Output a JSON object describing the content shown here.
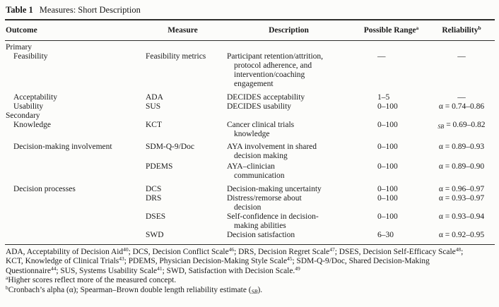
{
  "caption": {
    "label": "Table 1",
    "text": "Measures: Short Description"
  },
  "columns": [
    {
      "key": "outcome",
      "align": "left",
      "label": [
        {
          "t": "Outcome"
        }
      ]
    },
    {
      "key": "measure",
      "align": "center",
      "label": [
        {
          "t": "Measure"
        }
      ]
    },
    {
      "key": "description",
      "align": "center",
      "label": [
        {
          "t": "Description"
        }
      ]
    },
    {
      "key": "range",
      "align": "center",
      "label": [
        {
          "t": "Possible Range"
        },
        {
          "t": "a",
          "sup": true
        }
      ]
    },
    {
      "key": "reliability",
      "align": "center",
      "label": [
        {
          "t": "Reliability"
        },
        {
          "t": "b",
          "sup": true
        }
      ]
    }
  ],
  "rows": [
    {
      "section": "Primary"
    },
    {
      "outcome": "Feasibility",
      "measure": "Feasibility metrics",
      "description": [
        "Participant retention/attrition,",
        "protocol adherence, and",
        "intervention/coaching",
        "engagement"
      ],
      "range": "—",
      "reliability": [
        {
          "t": "—"
        }
      ]
    },
    {
      "outcome": "Acceptability",
      "measure": "ADA",
      "description": [
        "DECIDES acceptability"
      ],
      "range": "1–5",
      "reliability": [
        {
          "t": "—"
        }
      ]
    },
    {
      "outcome": "Usability",
      "measure": "SUS",
      "description": [
        "DECIDES usability"
      ],
      "range": "0–100",
      "reliability": [
        {
          "t": "α = 0.74–0.86"
        }
      ]
    },
    {
      "section": "Secondary"
    },
    {
      "outcome": "Knowledge",
      "measure": "KCT",
      "description": [
        "Cancer clinical trials",
        "knowledge"
      ],
      "range": "0–100",
      "reliability": [
        {
          "t": "SB",
          "subi": true
        },
        {
          "t": " = 0.69–0.82"
        }
      ]
    },
    {
      "outcome": "Decision-making involvement",
      "measure": "SDM-Q-9/Doc",
      "description": [
        "AYA involvement in shared",
        "decision making"
      ],
      "range": "0–100",
      "reliability": [
        {
          "t": "α = 0.89–0.93"
        }
      ]
    },
    {
      "outcome": "",
      "measure": "PDEMS",
      "description": [
        "AYA–clinician",
        "communication"
      ],
      "range": "0–100",
      "reliability": [
        {
          "t": "α = 0.89–0.90"
        }
      ]
    },
    {
      "outcome": "Decision processes",
      "measure": "DCS",
      "description": [
        "Decision-making uncertainty"
      ],
      "range": "0–100",
      "reliability": [
        {
          "t": "α = 0.96–0.97"
        }
      ]
    },
    {
      "outcome": "",
      "measure": "DRS",
      "description": [
        "Distress/remorse about",
        "decision"
      ],
      "range": "0–100",
      "reliability": [
        {
          "t": "α = 0.93–0.97"
        }
      ]
    },
    {
      "outcome": "",
      "measure": "DSES",
      "description": [
        "Self-confidence in decision-",
        "making abilities"
      ],
      "range": "0–100",
      "reliability": [
        {
          "t": "α = 0.93–0.94"
        }
      ]
    },
    {
      "outcome": "",
      "measure": "SWD",
      "description": [
        "Decision satisfaction"
      ],
      "range": "6–30",
      "reliability": [
        {
          "t": "α = 0.92–0.95"
        }
      ]
    }
  ],
  "footnotes": [
    {
      "segments": [
        {
          "t": "ADA, Acceptability of Decision Aid"
        },
        {
          "t": "40",
          "sup": true
        },
        {
          "t": "; DCS, Decision Conflict Scale"
        },
        {
          "t": "46",
          "sup": true
        },
        {
          "t": "; DRS, Decision Regret Scale"
        },
        {
          "t": "47",
          "sup": true
        },
        {
          "t": "; DSES, Decision Self-Efficacy Scale"
        },
        {
          "t": "48",
          "sup": true
        },
        {
          "t": ";"
        }
      ]
    },
    {
      "segments": [
        {
          "t": "KCT, Knowledge of Clinical Trials"
        },
        {
          "t": "43",
          "sup": true
        },
        {
          "t": "; PDEMS, Physician Decision-Making Style Scale"
        },
        {
          "t": "45",
          "sup": true
        },
        {
          "t": "; SDM-Q-9/Doc, Shared Decision-Making"
        }
      ]
    },
    {
      "segments": [
        {
          "t": "Questionnaire"
        },
        {
          "t": "44",
          "sup": true
        },
        {
          "t": "; SUS, Systems Usability Scale"
        },
        {
          "t": "41",
          "sup": true
        },
        {
          "t": "; SWD, Satisfaction with Decision Scale."
        },
        {
          "t": "49",
          "sup": true
        }
      ]
    },
    {
      "segments": [
        {
          "t": "a",
          "sup": true
        },
        {
          "t": "Higher scores reflect more of the measured concept."
        }
      ]
    },
    {
      "segments": [
        {
          "t": "b",
          "sup": true
        },
        {
          "t": "Cronbach’s alpha (α); Spearman–Brown double length reliability estimate ("
        },
        {
          "t": "SB",
          "subi": true
        },
        {
          "t": ")."
        }
      ]
    }
  ],
  "colors": {
    "page_background": "#fcfcfa",
    "text": "#1b1b1b",
    "rule": "#2e2e2c"
  }
}
